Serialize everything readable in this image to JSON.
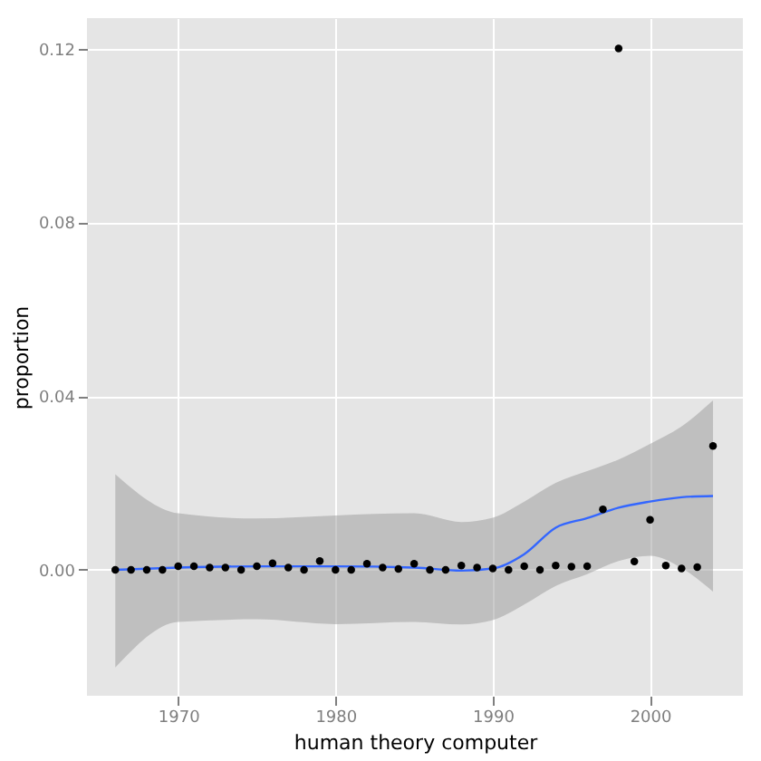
{
  "chart_data": {
    "type": "scatter",
    "xlabel": "human theory computer",
    "ylabel": "proportion",
    "xlim": [
      1964.2,
      2005.9
    ],
    "xticks": [
      1970,
      1980,
      1990,
      2000
    ],
    "ylim": [
      -0.029,
      0.127
    ],
    "yticks": [
      {
        "value": 0,
        "label": "0.00"
      },
      {
        "value": 0.04,
        "label": "0.04"
      },
      {
        "value": 0.08,
        "label": "0.08"
      },
      {
        "value": 0.12,
        "label": "0.12"
      }
    ],
    "grid": true,
    "series": [
      {
        "color": "#000000",
        "marker": "circle",
        "x": [
          1966,
          1967,
          1968,
          1969,
          1970,
          1971,
          1972,
          1973,
          1974,
          1975,
          1976,
          1977,
          1978,
          1979,
          1980,
          1981,
          1982,
          1983,
          1984,
          1985,
          1986,
          1987,
          1988,
          1989,
          1990,
          1991,
          1992,
          1993,
          1994,
          1995,
          1996,
          1997,
          1998,
          1999,
          2000,
          2001,
          2002,
          2003,
          2004
        ],
        "values": [
          0,
          0,
          0,
          0,
          0.0008,
          0.0008,
          0.0005,
          0.0005,
          0,
          0.0008,
          0.0015,
          0.0005,
          0,
          0.002,
          0,
          0,
          0.0014,
          0.0005,
          0.0002,
          0.0014,
          0,
          0,
          0.001,
          0.0005,
          0.0003,
          0,
          0.0008,
          0,
          0.001,
          0.0007,
          0.0008,
          0.0139,
          0.12,
          0.0019,
          0.0115,
          0.001,
          0.0003,
          0.0006,
          0.0285
        ]
      },
      {
        "type": "line",
        "color": "#3366ff",
        "line_style": "solid",
        "x": [
          1966,
          1970,
          1975,
          1980,
          1985,
          1988,
          1990,
          1992,
          1994,
          1996,
          1998,
          2000,
          2002,
          2004
        ],
        "values": [
          0,
          0.0005,
          0.0008,
          0.0008,
          0.0005,
          -0.0002,
          0.0003,
          0.0036,
          0.0097,
          0.0119,
          0.0143,
          0.0157,
          0.0167,
          0.017
        ],
        "lower": [
          -0.0225,
          -0.012,
          -0.0114,
          -0.0125,
          -0.012,
          -0.0126,
          -0.0116,
          -0.008,
          -0.0037,
          -0.001,
          0.002,
          0.0032,
          0.0004,
          -0.005
        ],
        "upper": [
          0.022,
          0.013,
          0.0118,
          0.0125,
          0.013,
          0.011,
          0.012,
          0.0157,
          0.02,
          0.0227,
          0.0254,
          0.029,
          0.033,
          0.039
        ]
      }
    ]
  }
}
